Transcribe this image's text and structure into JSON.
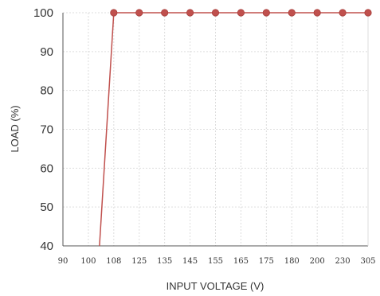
{
  "chart_data": {
    "type": "line",
    "title": "",
    "xlabel": "INPUT VOLTAGE (V)",
    "ylabel": "LOAD (%)",
    "categories": [
      "90",
      "100",
      "108",
      "125",
      "135",
      "145",
      "155",
      "165",
      "175",
      "180",
      "200",
      "230",
      "305"
    ],
    "ylim": [
      40,
      100
    ],
    "yticks": [
      "40",
      "50",
      "60",
      "70",
      "80",
      "90",
      "100"
    ],
    "grid": true,
    "series": [
      {
        "values": [
          null,
          null,
          100,
          100,
          100,
          100,
          100,
          100,
          100,
          100,
          100,
          100,
          100
        ],
        "ramp": {
          "from_x": 103.5,
          "from_y": 40,
          "to_x": 108,
          "to_y": 100
        },
        "color": "#c0504d"
      }
    ]
  }
}
